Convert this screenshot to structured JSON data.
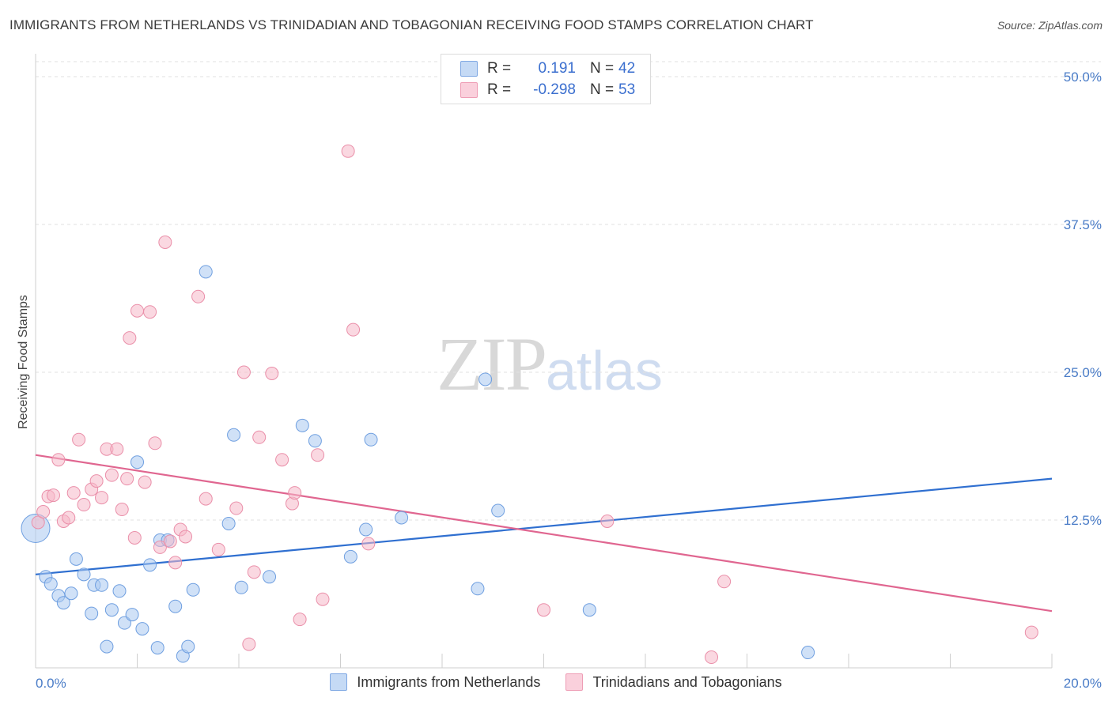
{
  "title": "IMMIGRANTS FROM NETHERLANDS VS TRINIDADIAN AND TOBAGONIAN RECEIVING FOOD STAMPS CORRELATION CHART",
  "source": "Source: ZipAtlas.com",
  "watermark": {
    "zip": "ZIP",
    "atlas": "atlas"
  },
  "legend": {
    "rows": [
      {
        "r_label": "R =",
        "r_value": "0.191",
        "n_label": "N =",
        "n_value": "42",
        "color": "#a9c8f0"
      },
      {
        "r_label": "R =",
        "r_value": "-0.298",
        "n_label": "N =",
        "n_value": "53",
        "color": "#f5b8c8"
      }
    ]
  },
  "bottom_legend": [
    {
      "label": "Immigrants from Netherlands",
      "color": "#a9c8f0"
    },
    {
      "label": "Trinidadians and Tobagonians",
      "color": "#f5b8c8"
    }
  ],
  "chart_data": {
    "type": "scatter",
    "title": "IMMIGRANTS FROM NETHERLANDS VS TRINIDADIAN AND TOBAGONIAN RECEIVING FOOD STAMPS CORRELATION CHART",
    "xlabel": "",
    "ylabel": "Receiving Food Stamps",
    "xlim": [
      0,
      20
    ],
    "ylim": [
      0,
      50
    ],
    "x_tick_labels": [
      "0.0%",
      "20.0%"
    ],
    "y_ticks": [
      12.5,
      25.0,
      37.5,
      50.0
    ],
    "y_tick_labels": [
      "12.5%",
      "25.0%",
      "37.5%",
      "50.0%"
    ],
    "series": [
      {
        "name": "Immigrants from Netherlands",
        "color": "#a9c8f0",
        "stroke": "#6f9fe0",
        "line_color": "#2f6fd0",
        "trend": {
          "x0": 0,
          "y0": 7.9,
          "x1": 20,
          "y1": 16.0
        },
        "points": [
          {
            "x": 0.0,
            "y": 11.8,
            "big": true
          },
          {
            "x": 0.2,
            "y": 7.7
          },
          {
            "x": 0.3,
            "y": 7.1
          },
          {
            "x": 0.45,
            "y": 6.1
          },
          {
            "x": 0.55,
            "y": 5.5
          },
          {
            "x": 0.7,
            "y": 6.3
          },
          {
            "x": 0.8,
            "y": 9.2
          },
          {
            "x": 0.95,
            "y": 7.9
          },
          {
            "x": 1.1,
            "y": 4.6
          },
          {
            "x": 1.15,
            "y": 7.0
          },
          {
            "x": 1.3,
            "y": 7.0
          },
          {
            "x": 1.5,
            "y": 4.9
          },
          {
            "x": 1.65,
            "y": 6.5
          },
          {
            "x": 1.75,
            "y": 3.8
          },
          {
            "x": 1.9,
            "y": 4.5
          },
          {
            "x": 2.0,
            "y": 17.4
          },
          {
            "x": 2.1,
            "y": 3.3
          },
          {
            "x": 2.25,
            "y": 8.7
          },
          {
            "x": 2.45,
            "y": 10.8
          },
          {
            "x": 2.6,
            "y": 10.8
          },
          {
            "x": 2.75,
            "y": 5.2
          },
          {
            "x": 2.9,
            "y": 1.0
          },
          {
            "x": 3.0,
            "y": 1.8
          },
          {
            "x": 3.1,
            "y": 6.6
          },
          {
            "x": 1.4,
            "y": 1.8
          },
          {
            "x": 2.4,
            "y": 1.7
          },
          {
            "x": 3.35,
            "y": 33.5
          },
          {
            "x": 3.8,
            "y": 12.2
          },
          {
            "x": 3.9,
            "y": 19.7
          },
          {
            "x": 4.05,
            "y": 6.8
          },
          {
            "x": 4.6,
            "y": 7.7
          },
          {
            "x": 5.25,
            "y": 20.5
          },
          {
            "x": 5.5,
            "y": 19.2
          },
          {
            "x": 6.2,
            "y": 9.4
          },
          {
            "x": 6.5,
            "y": 11.7
          },
          {
            "x": 6.6,
            "y": 19.3
          },
          {
            "x": 7.2,
            "y": 12.7
          },
          {
            "x": 8.7,
            "y": 6.7
          },
          {
            "x": 8.85,
            "y": 24.4
          },
          {
            "x": 9.1,
            "y": 13.3
          },
          {
            "x": 10.9,
            "y": 4.9
          },
          {
            "x": 15.2,
            "y": 1.3
          }
        ]
      },
      {
        "name": "Trinidadians and Tobagonians",
        "color": "#f5b8c8",
        "stroke": "#ea8fa9",
        "line_color": "#e06690",
        "trend": {
          "x0": 0,
          "y0": 18.0,
          "x1": 20,
          "y1": 4.8
        },
        "points": [
          {
            "x": 0.05,
            "y": 12.3
          },
          {
            "x": 0.15,
            "y": 13.2
          },
          {
            "x": 0.25,
            "y": 14.5
          },
          {
            "x": 0.35,
            "y": 14.6
          },
          {
            "x": 0.45,
            "y": 17.6
          },
          {
            "x": 0.55,
            "y": 12.4
          },
          {
            "x": 0.65,
            "y": 12.7
          },
          {
            "x": 0.75,
            "y": 14.8
          },
          {
            "x": 0.85,
            "y": 19.3
          },
          {
            "x": 0.95,
            "y": 13.8
          },
          {
            "x": 1.1,
            "y": 15.1
          },
          {
            "x": 1.2,
            "y": 15.8
          },
          {
            "x": 1.3,
            "y": 14.4
          },
          {
            "x": 1.4,
            "y": 18.5
          },
          {
            "x": 1.5,
            "y": 16.3
          },
          {
            "x": 1.6,
            "y": 18.5
          },
          {
            "x": 1.7,
            "y": 13.4
          },
          {
            "x": 1.8,
            "y": 16.0
          },
          {
            "x": 1.85,
            "y": 27.9
          },
          {
            "x": 1.95,
            "y": 11.0
          },
          {
            "x": 2.0,
            "y": 30.2
          },
          {
            "x": 2.15,
            "y": 15.7
          },
          {
            "x": 2.25,
            "y": 30.1
          },
          {
            "x": 2.35,
            "y": 19.0
          },
          {
            "x": 2.45,
            "y": 10.2
          },
          {
            "x": 2.55,
            "y": 36.0
          },
          {
            "x": 2.65,
            "y": 10.7
          },
          {
            "x": 2.75,
            "y": 8.9
          },
          {
            "x": 2.85,
            "y": 11.7
          },
          {
            "x": 2.95,
            "y": 11.1
          },
          {
            "x": 3.2,
            "y": 31.4
          },
          {
            "x": 3.35,
            "y": 14.3
          },
          {
            "x": 3.6,
            "y": 10.0
          },
          {
            "x": 3.95,
            "y": 13.5
          },
          {
            "x": 4.1,
            "y": 25.0
          },
          {
            "x": 4.2,
            "y": 2.0
          },
          {
            "x": 4.3,
            "y": 8.1
          },
          {
            "x": 4.4,
            "y": 19.5
          },
          {
            "x": 4.65,
            "y": 24.9
          },
          {
            "x": 4.85,
            "y": 17.6
          },
          {
            "x": 5.05,
            "y": 13.9
          },
          {
            "x": 5.1,
            "y": 14.8
          },
          {
            "x": 5.2,
            "y": 4.1
          },
          {
            "x": 5.55,
            "y": 18.0
          },
          {
            "x": 5.65,
            "y": 5.8
          },
          {
            "x": 6.15,
            "y": 43.7
          },
          {
            "x": 6.25,
            "y": 28.6
          },
          {
            "x": 6.55,
            "y": 10.5
          },
          {
            "x": 10.0,
            "y": 4.9
          },
          {
            "x": 11.25,
            "y": 12.4
          },
          {
            "x": 13.3,
            "y": 0.9
          },
          {
            "x": 13.55,
            "y": 7.3
          },
          {
            "x": 19.6,
            "y": 3.0
          }
        ]
      }
    ]
  }
}
